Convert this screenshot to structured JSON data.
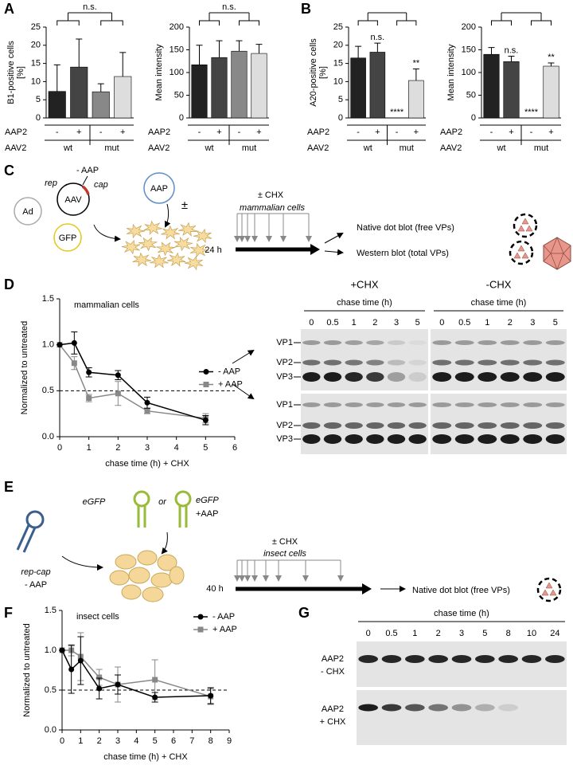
{
  "panel_labels": [
    "A",
    "B",
    "C",
    "D",
    "E",
    "F",
    "G"
  ],
  "chart_data": [
    {
      "type": "bar",
      "ylabel": [
        "B1-positive cells",
        "[%]"
      ],
      "categories": [
        "-",
        "+",
        "-",
        "+"
      ],
      "groups": [
        "wt",
        "mut"
      ],
      "row_labels": [
        "AAP2",
        "AAV2"
      ],
      "values": [
        7.3,
        14,
        7.2,
        11.4
      ],
      "errors": [
        7.3,
        7.7,
        2.2,
        6.6
      ],
      "colors": [
        "#222222",
        "#444444",
        "#888888",
        "#dddddd"
      ],
      "ylim": [
        0,
        25
      ],
      "yticks": [
        0,
        5,
        10,
        15,
        20,
        25
      ],
      "bracket_label": "n.s."
    },
    {
      "type": "bar",
      "ylabel": [
        "Mean intensity"
      ],
      "categories": [
        "-",
        "+",
        "-",
        "+"
      ],
      "groups": [
        "wt",
        "mut"
      ],
      "row_labels": [
        "AAP2",
        "AAV2"
      ],
      "values": [
        117,
        133,
        147,
        142
      ],
      "errors": [
        43,
        37,
        23,
        20
      ],
      "colors": [
        "#222222",
        "#444444",
        "#888888",
        "#dddddd"
      ],
      "ylim": [
        0,
        200
      ],
      "yticks": [
        0,
        50,
        100,
        150,
        200
      ],
      "bracket_label": "n.s."
    },
    {
      "type": "bar",
      "ylabel": [
        "A20-positive cells",
        "[%]"
      ],
      "categories": [
        "-",
        "+",
        "-",
        "+"
      ],
      "groups": [
        "wt",
        "mut"
      ],
      "row_labels": [
        "AAP2",
        "AAV2"
      ],
      "values": [
        16.5,
        18.1,
        0,
        10.3
      ],
      "errors": [
        3.2,
        2.5,
        null,
        3.2
      ],
      "colors": [
        "#222222",
        "#444444",
        "#888888",
        "#dddddd"
      ],
      "ylim": [
        0,
        25
      ],
      "yticks": [
        0,
        5,
        10,
        15,
        20,
        25
      ],
      "bar_labels": [
        null,
        "n.s.",
        "****",
        "**"
      ]
    },
    {
      "type": "bar",
      "ylabel": [
        "Mean intensity"
      ],
      "categories": [
        "-",
        "+",
        "-",
        "+"
      ],
      "groups": [
        "wt",
        "mut"
      ],
      "row_labels": [
        "AAP2",
        "AAV2"
      ],
      "values": [
        140,
        124,
        0,
        114
      ],
      "errors": [
        15,
        12,
        null,
        7
      ],
      "colors": [
        "#222222",
        "#444444",
        "#888888",
        "#dddddd"
      ],
      "ylim": [
        0,
        200
      ],
      "yticks": [
        0,
        50,
        100,
        150,
        200
      ],
      "bar_labels": [
        null,
        "n.s.",
        "****",
        "**"
      ]
    },
    {
      "type": "line",
      "title": "mammalian cells",
      "xlabel": "chase time (h) + CHX",
      "ylabel": "Normalized to untreated",
      "x": [
        0,
        0.5,
        1,
        2,
        3,
        5
      ],
      "series": [
        {
          "name": "- AAP",
          "color": "#000000",
          "marker": "circle",
          "values": [
            1,
            1.02,
            0.7,
            0.67,
            0.37,
            0.18
          ],
          "errors": [
            0,
            0.12,
            0.05,
            0.05,
            0.06,
            0.05
          ]
        },
        {
          "name": "+ AAP",
          "color": "#888888",
          "marker": "square",
          "values": [
            1,
            0.8,
            0.42,
            0.47,
            0.28,
            0.2
          ],
          "errors": [
            0,
            0.07,
            0.04,
            0.13,
            0.03,
            0.05
          ]
        }
      ],
      "xlim": [
        0,
        6
      ],
      "xticks": [
        0,
        1,
        2,
        3,
        4,
        5,
        6
      ],
      "ylim": [
        0,
        1.5
      ],
      "yticks": [
        {
          "value": 0,
          "label": "0.0"
        },
        {
          "value": 0.5,
          "label": "0.5"
        },
        {
          "value": 1,
          "label": "1.0"
        },
        {
          "value": 1.5,
          "label": "1.5"
        }
      ],
      "hline": 0.5,
      "legend": "right"
    },
    {
      "type": "line",
      "title": "insect cells",
      "xlabel": "chase time (h) + CHX",
      "ylabel": "Normalized to untreated",
      "x": [
        0,
        0.5,
        1,
        2,
        3,
        5,
        8
      ],
      "series": [
        {
          "name": "- AAP",
          "color": "#000000",
          "marker": "circle",
          "values": [
            1,
            0.76,
            0.87,
            0.52,
            0.57,
            0.41,
            0.43
          ],
          "errors": [
            0,
            0.3,
            0.3,
            0.13,
            0.12,
            0.06,
            0.1
          ]
        },
        {
          "name": "+ AAP",
          "color": "#888888",
          "marker": "square",
          "values": [
            1,
            1,
            0.92,
            0.66,
            0.57,
            0.63,
            0.42
          ],
          "errors": [
            0,
            0.07,
            0.3,
            0.1,
            0.22,
            0.25,
            0.1
          ]
        }
      ],
      "xlim": [
        0,
        9
      ],
      "xticks": [
        0,
        1,
        2,
        3,
        4,
        5,
        6,
        7,
        8,
        9
      ],
      "ylim": [
        0,
        1.5
      ],
      "yticks": [
        {
          "value": 0,
          "label": "0.0"
        },
        {
          "value": 0.5,
          "label": "0.5"
        },
        {
          "value": 1,
          "label": "1.0"
        },
        {
          "value": 1.5,
          "label": "1.5"
        }
      ],
      "hline": 0.5,
      "legend": "upper right"
    }
  ],
  "diagram_c": {
    "minus_aap": "- AAP",
    "rep": "rep",
    "cap": "cap",
    "aav": "AAV",
    "aap": "AAP",
    "ad": "Ad",
    "gfp": "GFP",
    "plusminus": "±",
    "chx": "± CHX",
    "cells": "mammalian cells",
    "time": "24 h",
    "native": "Native dot blot (free VPs)",
    "western": "Western blot (total VPs)"
  },
  "blot_d": {
    "conditions": [
      "+CHX",
      "-CHX"
    ],
    "axis_label": "chase time (h)",
    "lanes": [
      "0",
      "0.5",
      "1",
      "2",
      "3",
      "5"
    ],
    "bands": [
      "VP1",
      "VP2",
      "VP3"
    ]
  },
  "diagram_e": {
    "egfp": "eGFP",
    "or": "or",
    "egfp_aap": "eGFP",
    "plus_aap": "+AAP",
    "repcap": "rep-cap",
    "minus_aap": "- AAP",
    "chx": "± CHX",
    "cells": "insect cells",
    "time": "40 h",
    "native": "Native dot blot (free VPs)"
  },
  "blot_g": {
    "axis_label": "chase time (h)",
    "lanes": [
      "0",
      "0.5",
      "1",
      "2",
      "3",
      "5",
      "8",
      "10",
      "24"
    ],
    "rows": [
      [
        "AAP2",
        "- CHX"
      ],
      [
        "AAP2",
        "+ CHX"
      ]
    ]
  }
}
